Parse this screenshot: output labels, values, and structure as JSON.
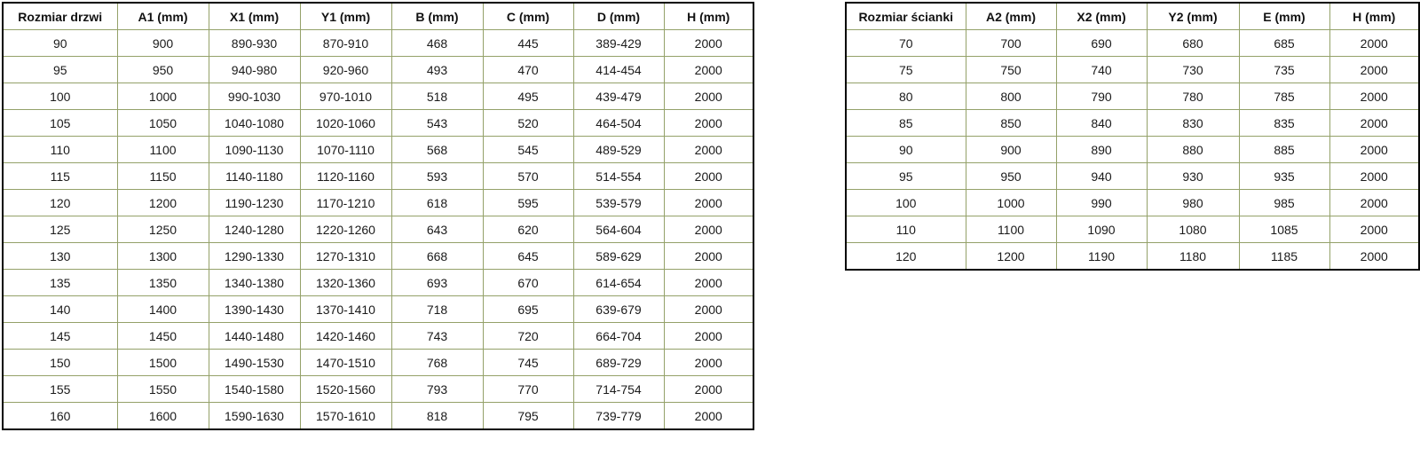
{
  "colors": {
    "background": "#ffffff",
    "outer_border": "#000000",
    "grid_olive": "#94a169",
    "grid_maroon": "#6b3038",
    "text": "#1a1a1a"
  },
  "door_table": {
    "headers": [
      "Rozmiar drzwi",
      "A1 (mm)",
      "X1 (mm)",
      "Y1 (mm)",
      "B (mm)",
      "C (mm)",
      "D (mm)",
      "H (mm)"
    ],
    "rows": [
      [
        "90",
        "900",
        "890-930",
        "870-910",
        "468",
        "445",
        "389-429",
        "2000"
      ],
      [
        "95",
        "950",
        "940-980",
        "920-960",
        "493",
        "470",
        "414-454",
        "2000"
      ],
      [
        "100",
        "1000",
        "990-1030",
        "970-1010",
        "518",
        "495",
        "439-479",
        "2000"
      ],
      [
        "105",
        "1050",
        "1040-1080",
        "1020-1060",
        "543",
        "520",
        "464-504",
        "2000"
      ],
      [
        "110",
        "1100",
        "1090-1130",
        "1070-1110",
        "568",
        "545",
        "489-529",
        "2000"
      ],
      [
        "115",
        "1150",
        "1140-1180",
        "1120-1160",
        "593",
        "570",
        "514-554",
        "2000"
      ],
      [
        "120",
        "1200",
        "1190-1230",
        "1170-1210",
        "618",
        "595",
        "539-579",
        "2000"
      ],
      [
        "125",
        "1250",
        "1240-1280",
        "1220-1260",
        "643",
        "620",
        "564-604",
        "2000"
      ],
      [
        "130",
        "1300",
        "1290-1330",
        "1270-1310",
        "668",
        "645",
        "589-629",
        "2000"
      ],
      [
        "135",
        "1350",
        "1340-1380",
        "1320-1360",
        "693",
        "670",
        "614-654",
        "2000"
      ],
      [
        "140",
        "1400",
        "1390-1430",
        "1370-1410",
        "718",
        "695",
        "639-679",
        "2000"
      ],
      [
        "145",
        "1450",
        "1440-1480",
        "1420-1460",
        "743",
        "720",
        "664-704",
        "2000"
      ],
      [
        "150",
        "1500",
        "1490-1530",
        "1470-1510",
        "768",
        "745",
        "689-729",
        "2000"
      ],
      [
        "155",
        "1550",
        "1540-1580",
        "1520-1560",
        "793",
        "770",
        "714-754",
        "2000"
      ],
      [
        "160",
        "1600",
        "1590-1630",
        "1570-1610",
        "818",
        "795",
        "739-779",
        "2000"
      ]
    ]
  },
  "wall_table": {
    "headers": [
      "Rozmiar ścianki",
      "A2 (mm)",
      "X2 (mm)",
      "Y2 (mm)",
      "E (mm)",
      "H (mm)"
    ],
    "rows": [
      [
        "70",
        "700",
        "690",
        "680",
        "685",
        "2000"
      ],
      [
        "75",
        "750",
        "740",
        "730",
        "735",
        "2000"
      ],
      [
        "80",
        "800",
        "790",
        "780",
        "785",
        "2000"
      ],
      [
        "85",
        "850",
        "840",
        "830",
        "835",
        "2000"
      ],
      [
        "90",
        "900",
        "890",
        "880",
        "885",
        "2000"
      ],
      [
        "95",
        "950",
        "940",
        "930",
        "935",
        "2000"
      ],
      [
        "100",
        "1000",
        "990",
        "980",
        "985",
        "2000"
      ],
      [
        "110",
        "1100",
        "1090",
        "1080",
        "1085",
        "2000"
      ],
      [
        "120",
        "1200",
        "1190",
        "1180",
        "1185",
        "2000"
      ]
    ]
  }
}
